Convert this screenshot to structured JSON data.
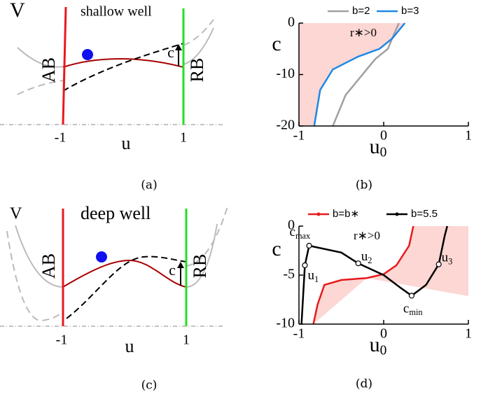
{
  "diagrams": [
    {
      "caption": "(a)",
      "title": "shallow well",
      "y_label": "V",
      "x_label": "u",
      "xticks": [
        "-1",
        "1"
      ],
      "left_label": "AB",
      "right_label": "RB",
      "arrow_label": "c"
    },
    {
      "caption": "(c)",
      "title": "deep well",
      "y_label": "V",
      "x_label": "u",
      "xticks": [
        "-1",
        "1"
      ],
      "left_label": "AB",
      "right_label": "RB",
      "arrow_label": "c"
    }
  ],
  "chart_data": [
    {
      "type": "line",
      "caption": "(b)",
      "ylabel": "c",
      "xlabel": "u",
      "xlabel_sub": "0",
      "annotation": "r∗>0",
      "xlim": [
        -1,
        1
      ],
      "ylim": [
        -20,
        0
      ],
      "xticks": [
        -1,
        0,
        1
      ],
      "yticks": [
        -20,
        -10,
        0
      ],
      "shade_color": "#fcd7d3",
      "series": [
        {
          "name": "b=2",
          "color": "#a0a0a0",
          "x": [
            0.18,
            0.1,
            0.05,
            -0.1,
            -0.3,
            -0.45,
            -0.6
          ],
          "values": [
            0,
            -3,
            -5,
            -7,
            -11,
            -14,
            -20
          ]
        },
        {
          "name": "b=3",
          "color": "#1e88e5",
          "x": [
            0.25,
            0.1,
            -0.05,
            -0.3,
            -0.6,
            -0.75,
            -0.82
          ],
          "values": [
            0,
            -3,
            -5,
            -6.5,
            -9,
            -13,
            -20
          ]
        }
      ]
    },
    {
      "type": "line",
      "caption": "(d)",
      "ylabel": "c",
      "xlabel": "u",
      "xlabel_sub": "0",
      "annotation": "r∗>0",
      "xlim": [
        -1,
        1
      ],
      "ylim": [
        -10,
        0
      ],
      "xticks": [
        -1,
        0,
        1
      ],
      "yticks": [
        -10,
        -5,
        0
      ],
      "shade_color": "#fcd7d3",
      "series": [
        {
          "name": "b=b∗",
          "color": "#e8191c",
          "x": [
            -0.83,
            -0.78,
            -0.7,
            -0.5,
            -0.2,
            0,
            0.15,
            0.3,
            0.35
          ],
          "values": [
            -10,
            -8,
            -6,
            -5.5,
            -5.3,
            -4.9,
            -4,
            -2,
            0
          ]
        },
        {
          "name": "b=5.5",
          "color": "#000000",
          "x": [
            -0.97,
            -0.95,
            -0.93,
            -0.88,
            -0.5,
            -0.3,
            0,
            0.2,
            0.33,
            0.5,
            0.65,
            0.72,
            0.75
          ],
          "values": [
            -10,
            -7,
            -4,
            -2,
            -2.7,
            -3.8,
            -5,
            -6.3,
            -7.1,
            -6,
            -3.9,
            -1,
            0
          ]
        }
      ],
      "annotations": [
        {
          "text": "c",
          "sub": "max",
          "x": -0.88,
          "y": -2
        },
        {
          "text": "u",
          "sub": "1",
          "x": -0.93,
          "y": -4
        },
        {
          "text": "u",
          "sub": "2",
          "x": -0.3,
          "y": -3.8
        },
        {
          "text": "c",
          "sub": "min",
          "x": 0.33,
          "y": -7.1
        },
        {
          "text": "u",
          "sub": "3",
          "x": 0.65,
          "y": -3.9
        }
      ]
    }
  ]
}
